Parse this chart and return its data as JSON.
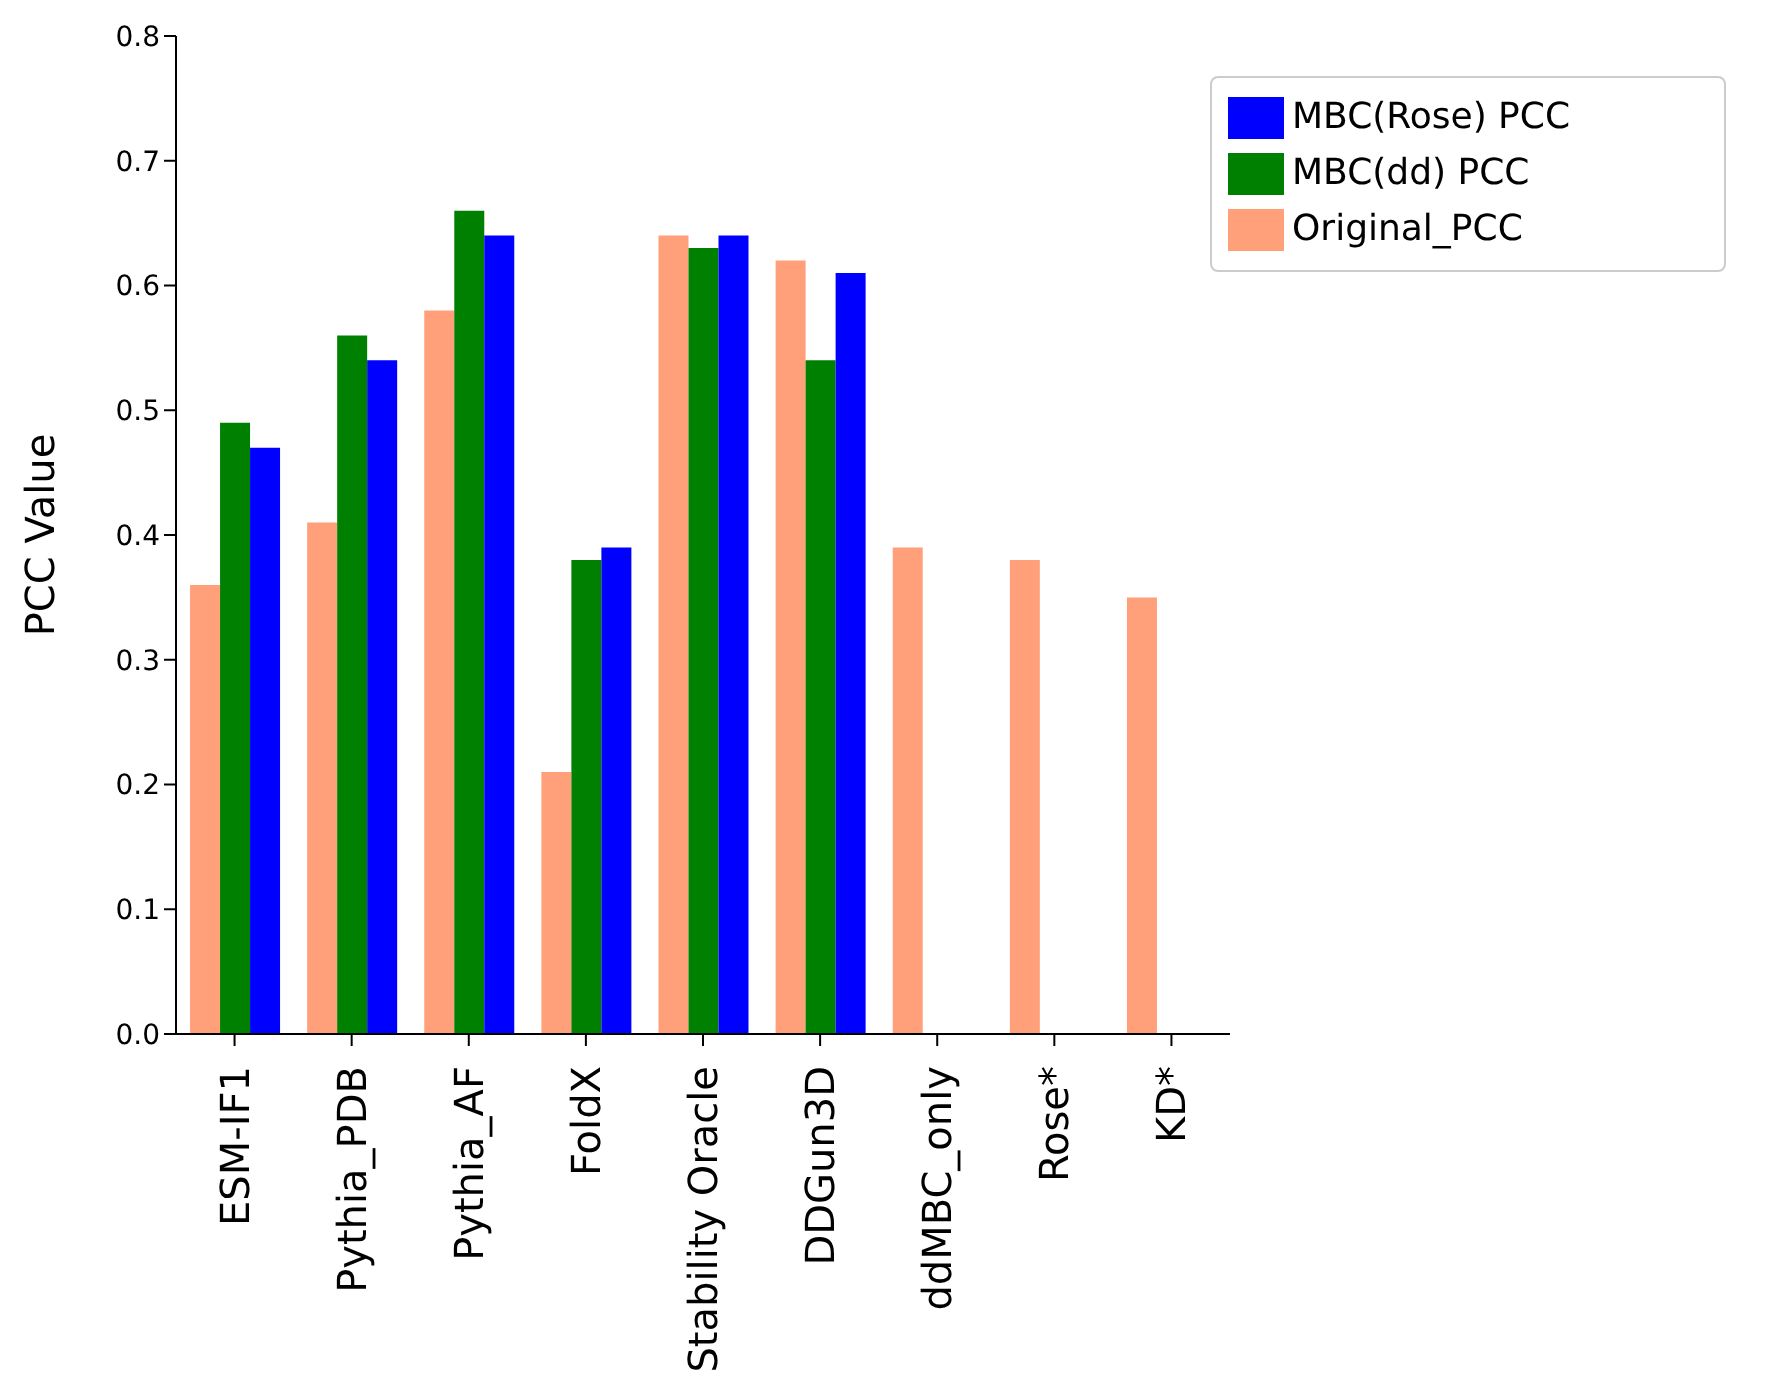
{
  "chart_data": {
    "type": "bar",
    "ylabel": "PCC Value",
    "categories": [
      "ESM-IF1",
      "Pythia_PDB",
      "Pythia_AF",
      "FoldX",
      "Stability Oracle",
      "DDGun3D",
      "ddMBC_only",
      "Rose*",
      "KD*"
    ],
    "series": [
      {
        "name": "Original_PCC",
        "color": "#ffa07a",
        "values": [
          0.36,
          0.41,
          0.58,
          0.21,
          0.64,
          0.62,
          0.39,
          0.38,
          0.35
        ]
      },
      {
        "name": "MBC(dd) PCC",
        "color": "#008000",
        "values": [
          0.49,
          0.56,
          0.66,
          0.38,
          0.63,
          0.54,
          null,
          null,
          null
        ]
      },
      {
        "name": "MBC(Rose) PCC",
        "color": "#0000ff",
        "values": [
          0.47,
          0.54,
          0.64,
          0.39,
          0.64,
          0.61,
          null,
          null,
          null
        ]
      }
    ],
    "ylim": [
      0,
      0.8
    ],
    "yticks": [
      {
        "value": 0,
        "label": "0.0"
      },
      0.1,
      0.2,
      0.3,
      0.4,
      0.5,
      0.6,
      0.7,
      0.8
    ],
    "legend": "top right"
  }
}
